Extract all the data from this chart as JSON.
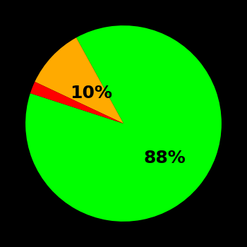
{
  "slices": [
    88,
    10,
    2
  ],
  "colors": [
    "#00ff00",
    "#ffaa00",
    "#ff0000"
  ],
  "labels": [
    "88%",
    "10%",
    ""
  ],
  "label_xys": [
    0.35,
    -0.15,
    0.0
  ],
  "background_color": "#000000",
  "startangle": 162,
  "label_fontsize": 18,
  "label_fontweight": "bold",
  "label_color": "#000000"
}
